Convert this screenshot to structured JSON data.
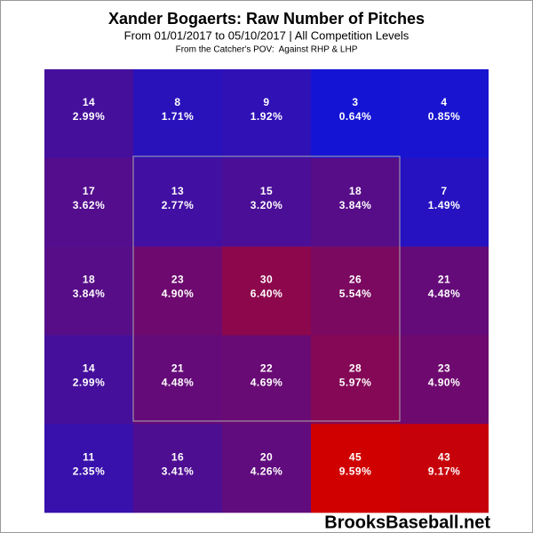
{
  "chart_data": {
    "type": "heatmap",
    "title": "Xander Bogaerts: Raw Number of Pitches",
    "subtitle": "From 01/01/2017 to 05/10/2017 | All Competition Levels",
    "note": "From the Catcher's POV:  Against RHP & LHP",
    "watermark": "BrooksBaseball.net",
    "colorscale": [
      "#1414d4",
      "#d00000"
    ],
    "values": [
      [
        14,
        8,
        9,
        3,
        4
      ],
      [
        17,
        13,
        15,
        18,
        7
      ],
      [
        18,
        23,
        30,
        26,
        21
      ],
      [
        14,
        21,
        22,
        28,
        23
      ],
      [
        11,
        16,
        20,
        45,
        43
      ]
    ],
    "percents": [
      [
        2.99,
        1.71,
        1.92,
        0.64,
        0.85
      ],
      [
        3.62,
        2.77,
        3.2,
        3.84,
        1.49
      ],
      [
        3.84,
        4.9,
        6.4,
        5.54,
        4.48
      ],
      [
        2.99,
        4.48,
        4.69,
        5.97,
        4.9
      ],
      [
        2.35,
        3.41,
        4.26,
        9.59,
        9.17
      ]
    ],
    "percent_labels": [
      [
        "2.99%",
        "1.71%",
        "1.92%",
        "0.64%",
        "0.85%"
      ],
      [
        "3.62%",
        "2.77%",
        "3.20%",
        "3.84%",
        "1.49%"
      ],
      [
        "3.84%",
        "4.90%",
        "6.40%",
        "5.54%",
        "4.48%"
      ],
      [
        "2.99%",
        "4.48%",
        "4.69%",
        "5.97%",
        "4.90%"
      ],
      [
        "2.35%",
        "3.41%",
        "4.26%",
        "9.59%",
        "9.17%"
      ]
    ]
  }
}
